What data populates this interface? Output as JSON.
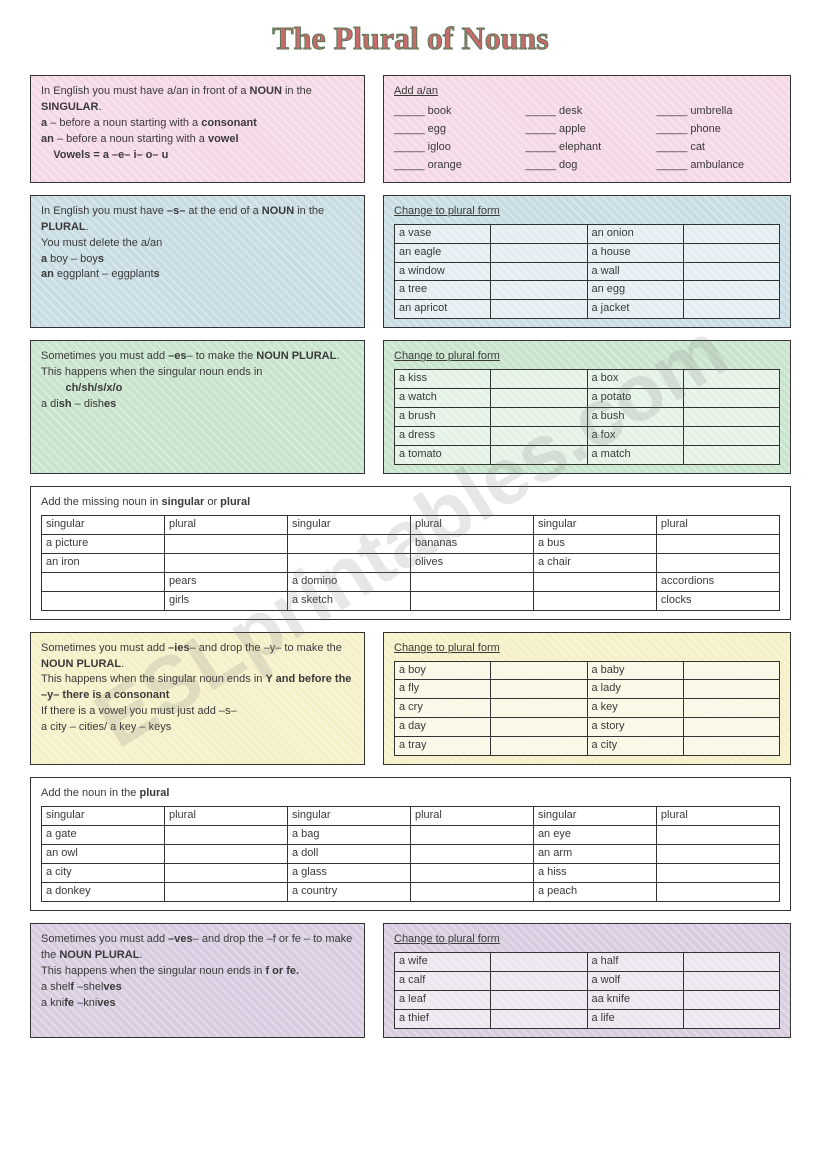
{
  "title": "The Plural of Nouns",
  "watermark": "ESLprintables.com",
  "section1": {
    "rule_html": "In English you must have a/an in front of a <b>NOUN</b> in the <b>SINGULAR</b>.<br><b>a</b> – before a noun starting with a <b>consonant</b><br><b>an</b> – before a noun starting with a <b>vowel</b><br>&nbsp;&nbsp;&nbsp;&nbsp;<b>Vowels = a –e– i– o– u</b>",
    "ex_title": "Add a/an",
    "words": [
      "book",
      "desk",
      "umbrella",
      "egg",
      "apple",
      "phone",
      "igloo",
      "elephant",
      "cat",
      "orange",
      "dog",
      "ambulance"
    ]
  },
  "section2": {
    "rule_html": "In English you must have <b>–s–</b> at the end of a <b>NOUN</b> in the <b>PLURAL</b>.<br>You must delete the a/an<br><b>a</b> boy – boy<b>s</b><br><b>an</b> eggplant – eggplant<b>s</b>",
    "ex_title": "Change to plural form",
    "rows": [
      [
        "a vase",
        "an onion"
      ],
      [
        "an eagle",
        "a house"
      ],
      [
        "a window",
        "a wall"
      ],
      [
        "a tree",
        "an egg"
      ],
      [
        "an apricot",
        "a jacket"
      ]
    ]
  },
  "section3": {
    "rule_html": "Sometimes you must add <b>–es</b>– to make the <b>NOUN PLURAL</b>.<br>This happens when the singular noun ends in<br>&nbsp;&nbsp;&nbsp;&nbsp;&nbsp;&nbsp;&nbsp;&nbsp;<b>ch/sh/s/x/o</b><br>a di<b>sh</b> – dish<b>es</b>",
    "ex_title": "Change to plural form",
    "rows": [
      [
        "a kiss",
        "a box"
      ],
      [
        "a watch",
        "a potato"
      ],
      [
        "a brush",
        "a bush"
      ],
      [
        "a dress",
        "a fox"
      ],
      [
        "a tomato",
        "a match"
      ]
    ]
  },
  "section4": {
    "title_html": "Add the missing noun in <b>singular</b> or <b>plural</b>",
    "headers": [
      "singular",
      "plural",
      "singular",
      "plural",
      "singular",
      "plural"
    ],
    "rows": [
      [
        "a picture",
        "",
        "",
        "bananas",
        "a bus",
        ""
      ],
      [
        "an iron",
        "",
        "",
        "olives",
        "a chair",
        ""
      ],
      [
        "",
        "pears",
        "a domino",
        "",
        "",
        "accordions"
      ],
      [
        "",
        "girls",
        "a sketch",
        "",
        "",
        "clocks"
      ]
    ]
  },
  "section5": {
    "rule_html": "Sometimes you must add <b>–ies</b>– and drop the –y– to make the <b>NOUN PLURAL</b>.<br>This happens when the singular noun ends in <b>Y and before the –y– there is a consonant</b><br>If there is a vowel you must just add –s–<br>a city – cities/ a key – keys",
    "ex_title": "Change to plural form",
    "rows": [
      [
        "a boy",
        "a baby"
      ],
      [
        "a fly",
        "a lady"
      ],
      [
        "a cry",
        "a key"
      ],
      [
        "a day",
        "a story"
      ],
      [
        "a tray",
        "a city"
      ]
    ]
  },
  "section6": {
    "title_html": "Add the noun in the <b>plural</b>",
    "headers": [
      "singular",
      "plural",
      "singular",
      "plural",
      "singular",
      "plural"
    ],
    "rows": [
      [
        "a gate",
        "",
        "a bag",
        "",
        "an eye",
        ""
      ],
      [
        "an owl",
        "",
        "a doll",
        "",
        "an arm",
        ""
      ],
      [
        "a city",
        "",
        "a glass",
        "",
        "a hiss",
        ""
      ],
      [
        "a donkey",
        "",
        "a country",
        "",
        "a peach",
        ""
      ]
    ]
  },
  "section7": {
    "rule_html": "Sometimes you must add <b>–ves</b>– and drop the –f or fe – to make the <b>NOUN PLURAL</b>.<br>This happens when the singular noun ends in <b>f or fe.</b><br>a shel<b>f</b> –shel<b>ves</b><br>a kni<b>fe</b> –kni<b>ves</b>",
    "ex_title": "Change to plural form",
    "rows": [
      [
        "a wife",
        "a half"
      ],
      [
        "a calf",
        "a wolf"
      ],
      [
        "a leaf",
        "aa knife"
      ],
      [
        "a thief",
        "a life"
      ]
    ]
  }
}
